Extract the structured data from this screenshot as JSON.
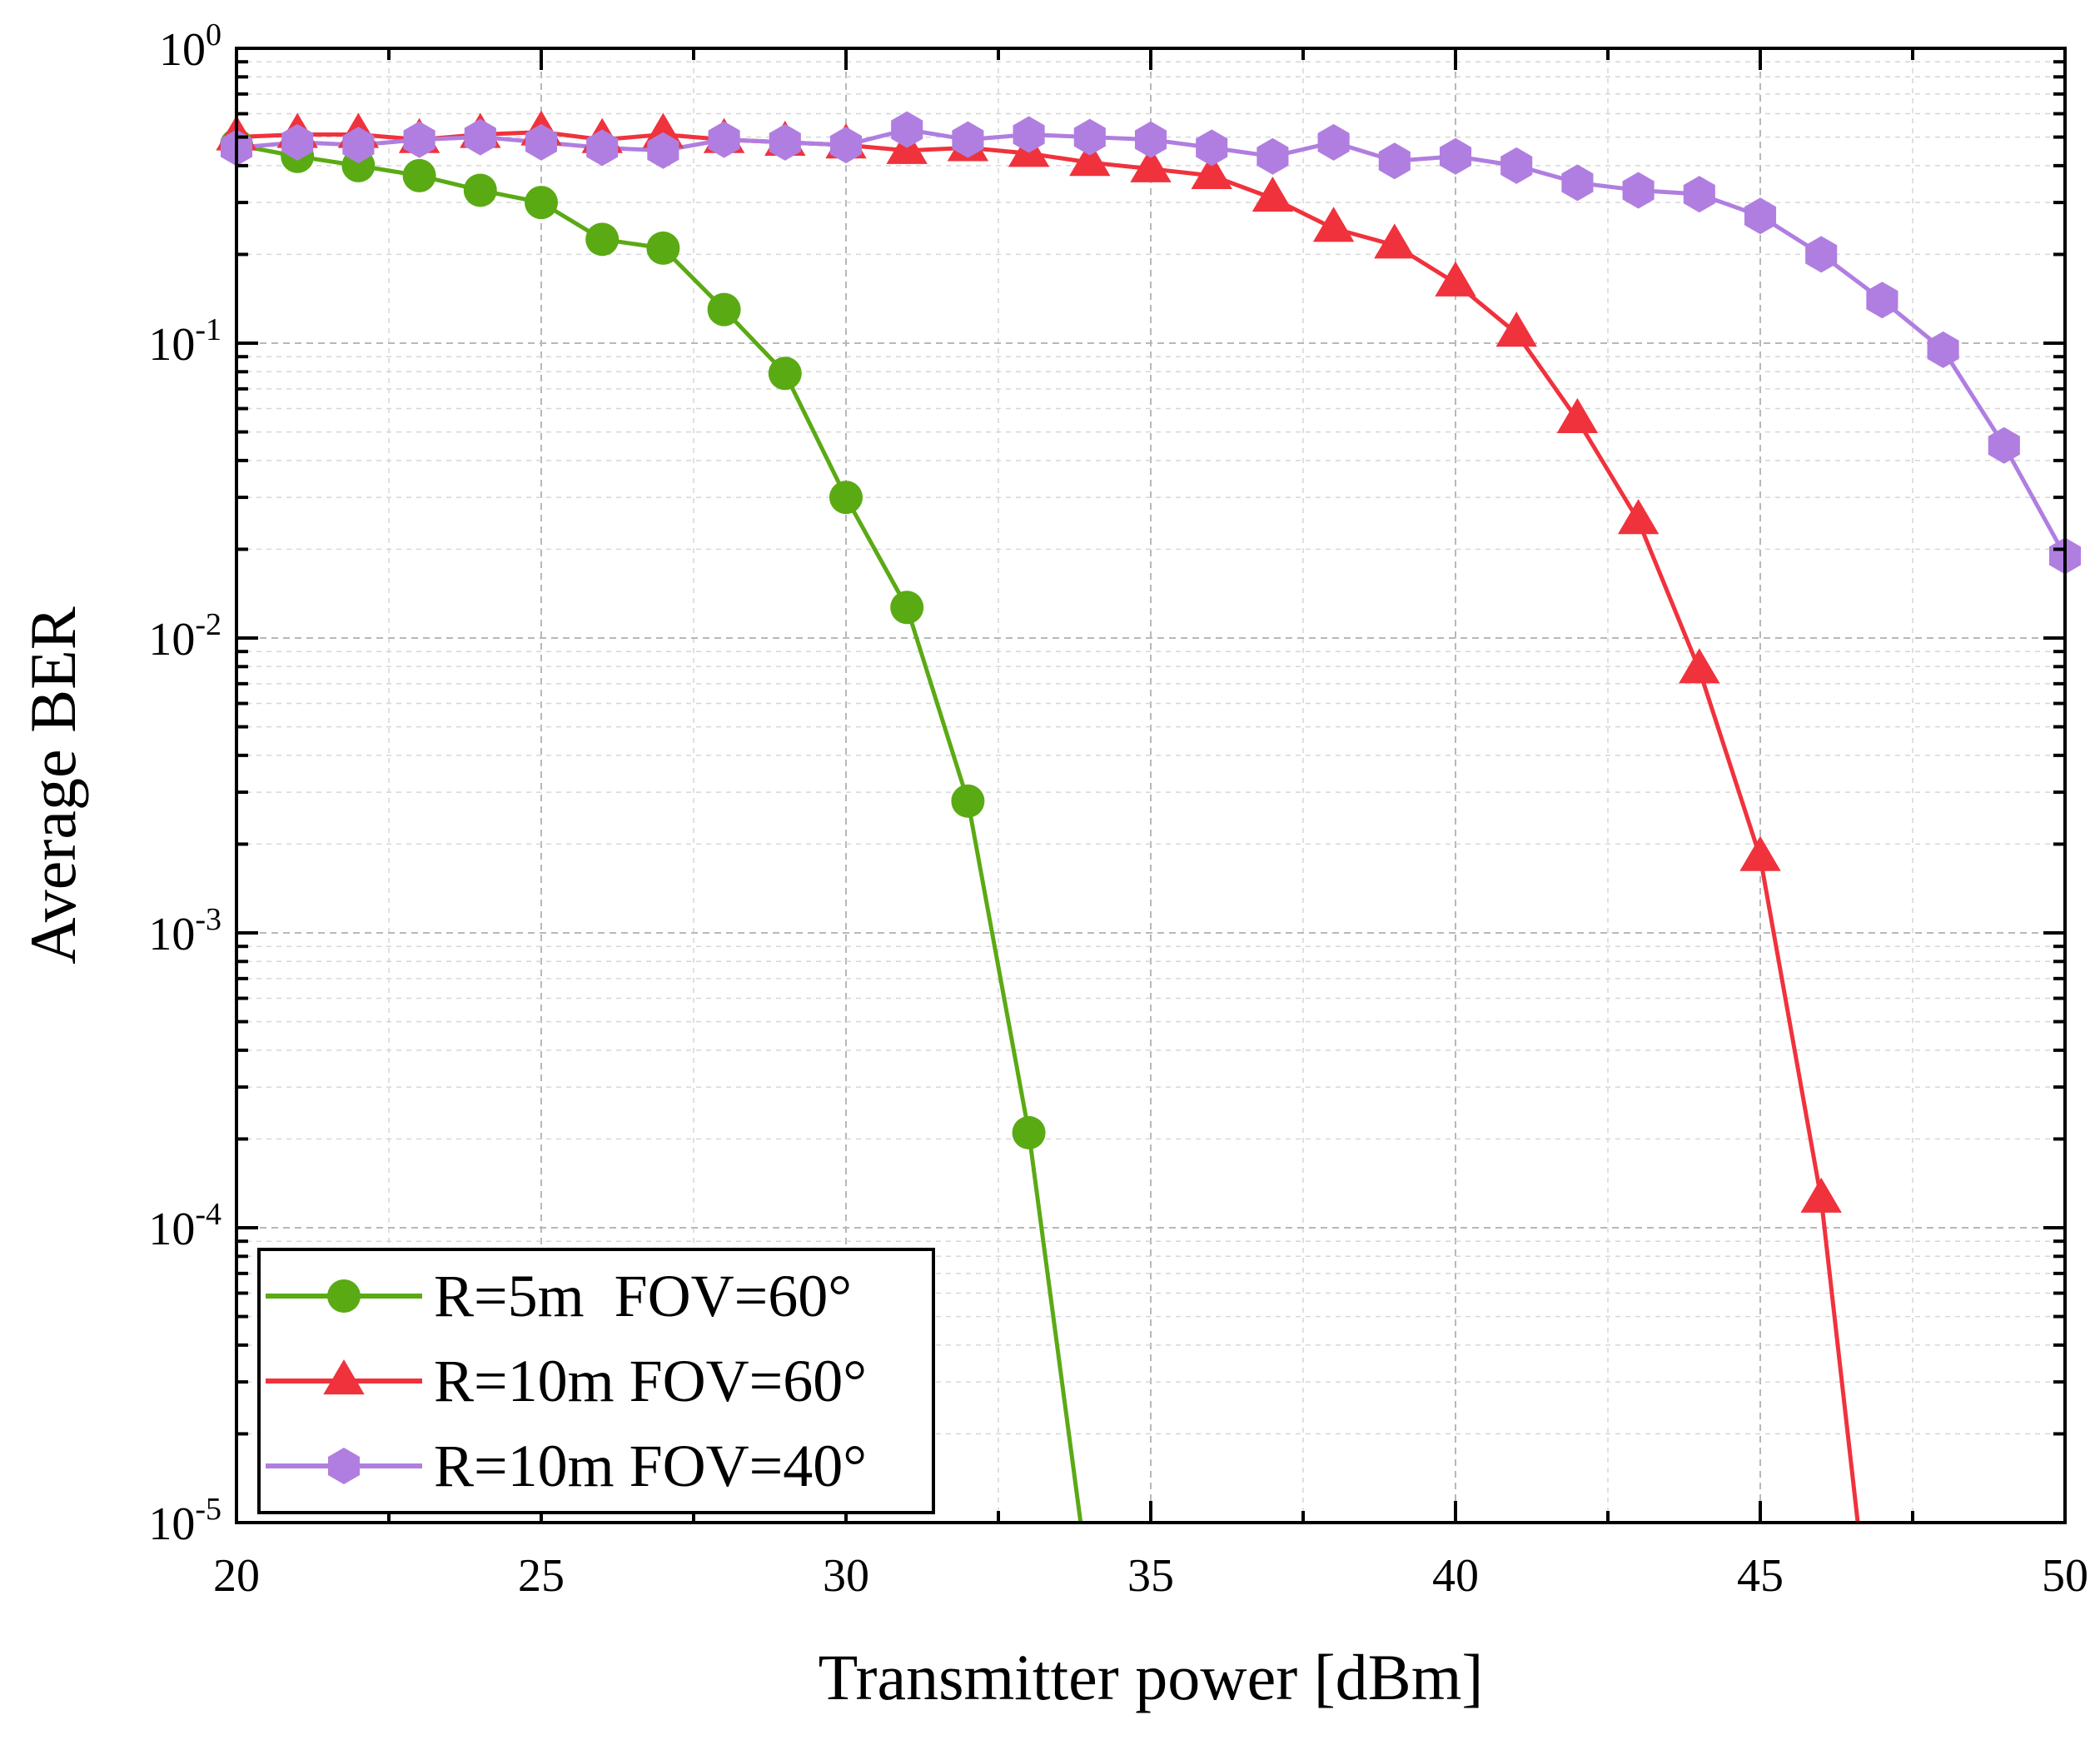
{
  "chart_data": {
    "type": "line",
    "title": "",
    "xlabel": "Transmitter power [dBm]",
    "ylabel": "Average BER",
    "xlim": [
      20,
      50
    ],
    "ylim": [
      1e-05,
      1
    ],
    "yscale": "log",
    "grid": true,
    "legend_position": "bottom-left",
    "x_ticks": [
      20,
      25,
      30,
      35,
      40,
      45,
      50
    ],
    "x_tick_labels": [
      "20",
      "25",
      "30",
      "35",
      "40",
      "45",
      "50"
    ],
    "y_ticks": [
      {
        "value": 1,
        "base": "10",
        "exp": "0"
      },
      {
        "value": 0.1,
        "base": "10",
        "exp": "-1"
      },
      {
        "value": 0.01,
        "base": "10",
        "exp": "-2"
      },
      {
        "value": 0.001,
        "base": "10",
        "exp": "-3"
      },
      {
        "value": 0.0001,
        "base": "10",
        "exp": "-4"
      },
      {
        "value": 1e-05,
        "base": "10",
        "exp": "-5"
      }
    ],
    "series": [
      {
        "name": "R=5m  FOV=60°",
        "color": "#5aaa14",
        "marker": "circle",
        "x": [
          20,
          21,
          22,
          23,
          24,
          25,
          26,
          27,
          28,
          29,
          30,
          31,
          32,
          33
        ],
        "values": [
          0.47,
          0.43,
          0.4,
          0.37,
          0.33,
          0.3,
          0.225,
          0.21,
          0.13,
          0.079,
          0.03,
          0.0127,
          0.0028,
          0.00021
        ],
        "line_extension": {
          "x": 33.85,
          "value": 1e-05
        }
      },
      {
        "name": "R=10m FOV=60°",
        "color": "#f0323c",
        "marker": "triangle",
        "x": [
          20,
          21,
          22,
          23,
          24,
          25,
          26,
          27,
          28,
          29,
          30,
          31,
          32,
          33,
          34,
          35,
          36,
          37,
          38,
          39,
          40,
          41,
          42,
          43,
          44,
          45,
          46
        ],
        "values": [
          0.5,
          0.51,
          0.51,
          0.49,
          0.51,
          0.52,
          0.49,
          0.51,
          0.49,
          0.48,
          0.47,
          0.45,
          0.46,
          0.44,
          0.41,
          0.39,
          0.37,
          0.31,
          0.245,
          0.215,
          0.16,
          0.108,
          0.055,
          0.025,
          0.0078,
          0.0018,
          0.000125
        ],
        "line_extension": {
          "x": 46.6,
          "value": 1e-05
        }
      },
      {
        "name": "R=10m FOV=40°",
        "color": "#b07ee0",
        "marker": "hexagon",
        "x": [
          20,
          21,
          22,
          23,
          24,
          25,
          26,
          27,
          28,
          29,
          30,
          31,
          32,
          33,
          34,
          35,
          36,
          37,
          38,
          39,
          40,
          41,
          42,
          43,
          44,
          45,
          46,
          47,
          48,
          49,
          50
        ],
        "values": [
          0.46,
          0.48,
          0.47,
          0.49,
          0.5,
          0.48,
          0.46,
          0.45,
          0.49,
          0.48,
          0.47,
          0.53,
          0.49,
          0.51,
          0.5,
          0.49,
          0.46,
          0.43,
          0.48,
          0.415,
          0.43,
          0.4,
          0.35,
          0.33,
          0.32,
          0.27,
          0.2,
          0.14,
          0.095,
          0.045,
          0.019
        ]
      }
    ]
  }
}
